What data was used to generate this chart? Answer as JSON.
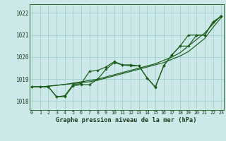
{
  "background_color": "#cce8e8",
  "grid_color": "#99cccc",
  "line_color": "#1a5c1a",
  "title": "Graphe pression niveau de la mer (hPa)",
  "hours": [
    0,
    1,
    2,
    3,
    4,
    5,
    6,
    7,
    8,
    9,
    10,
    11,
    12,
    13,
    14,
    15,
    16,
    17,
    18,
    19,
    20,
    21,
    22,
    23
  ],
  "ylim": [
    1017.6,
    1022.4
  ],
  "yticks": [
    1018,
    1019,
    1020,
    1021,
    1022
  ],
  "series": [
    [
      1018.65,
      1018.65,
      1018.65,
      1018.2,
      1018.2,
      1018.7,
      1018.75,
      1018.75,
      1019.0,
      1019.45,
      1019.75,
      1019.65,
      1019.6,
      1019.6,
      1019.05,
      1018.65,
      1019.6,
      1020.1,
      1020.5,
      1020.5,
      1021.0,
      1021.0,
      1021.6,
      1021.85
    ],
    [
      1018.65,
      1018.65,
      1018.65,
      1018.2,
      1018.25,
      1018.75,
      1018.8,
      1019.35,
      1019.4,
      1019.55,
      1019.8,
      1019.65,
      1019.65,
      1019.6,
      1019.05,
      1018.62,
      1019.6,
      1020.1,
      1020.5,
      1021.0,
      1021.0,
      1021.0,
      1021.6,
      1021.85
    ],
    [
      1018.65,
      1018.65,
      1018.68,
      1018.72,
      1018.76,
      1018.8,
      1018.84,
      1018.88,
      1018.95,
      1019.05,
      1019.15,
      1019.25,
      1019.35,
      1019.45,
      1019.55,
      1019.65,
      1019.75,
      1019.9,
      1020.05,
      1020.25,
      1020.55,
      1020.85,
      1021.35,
      1021.8
    ],
    [
      1018.65,
      1018.65,
      1018.68,
      1018.72,
      1018.76,
      1018.82,
      1018.88,
      1018.94,
      1019.0,
      1019.1,
      1019.2,
      1019.3,
      1019.4,
      1019.5,
      1019.6,
      1019.7,
      1019.85,
      1020.0,
      1020.2,
      1020.5,
      1020.8,
      1021.1,
      1021.5,
      1021.9
    ]
  ]
}
